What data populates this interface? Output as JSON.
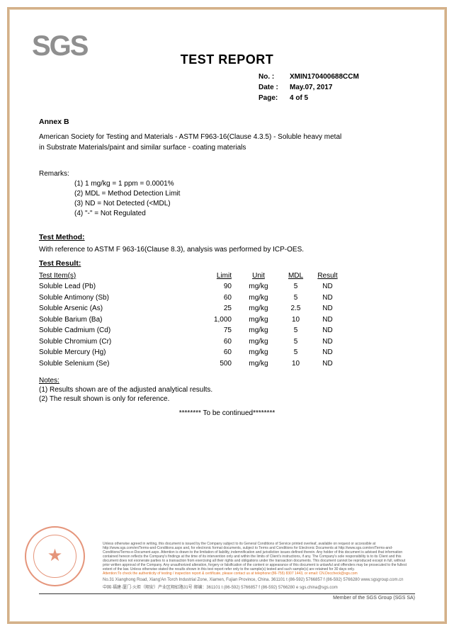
{
  "logo": {
    "text": "SGS"
  },
  "title": "TEST REPORT",
  "meta": {
    "no_label": "No.  :",
    "no_value": "XMIN170400688CCM",
    "date_label": "Date :",
    "date_value": "May.07, 2017",
    "page_label": "Page:",
    "page_value": "4 of 5"
  },
  "annex": "Annex B",
  "desc1": "American Society for Testing and Materials - ASTM F963-16(Clause 4.3.5) - Soluble heavy metal",
  "desc2": "in Substrate Materials/paint and similar surface - coating materials",
  "remarks_label": "Remarks:",
  "remarks": [
    "(1) 1 mg/kg = 1 ppm = 0.0001%",
    "(2) MDL = Method Detection Limit",
    "(3) ND = Not Detected (<MDL)",
    "(4) \"-\" = Not Regulated"
  ],
  "method_head": "Test Method:",
  "method_text": "With reference to ASTM F 963-16(Clause 8.3), analysis was performed by ICP-OES.",
  "result_head": "Test Result:",
  "table": {
    "headers": {
      "name": "Test Item(s)",
      "limit": "Limit",
      "unit": "Unit",
      "mdl": "MDL",
      "result": "Result"
    },
    "rows": [
      {
        "name": "Soluble Lead (Pb)",
        "limit": "90",
        "unit": "mg/kg",
        "mdl": "5",
        "result": "ND"
      },
      {
        "name": "Soluble Antimony (Sb)",
        "limit": "60",
        "unit": "mg/kg",
        "mdl": "5",
        "result": "ND"
      },
      {
        "name": "Soluble Arsenic (As)",
        "limit": "25",
        "unit": "mg/kg",
        "mdl": "2.5",
        "result": "ND"
      },
      {
        "name": "Soluble Barium (Ba)",
        "limit": "1,000",
        "unit": "mg/kg",
        "mdl": "10",
        "result": "ND"
      },
      {
        "name": "Soluble Cadmium (Cd)",
        "limit": "75",
        "unit": "mg/kg",
        "mdl": "5",
        "result": "ND"
      },
      {
        "name": "Soluble Chromium (Cr)",
        "limit": "60",
        "unit": "mg/kg",
        "mdl": "5",
        "result": "ND"
      },
      {
        "name": "Soluble Mercury (Hg)",
        "limit": "60",
        "unit": "mg/kg",
        "mdl": "5",
        "result": "ND"
      },
      {
        "name": "Soluble Selenium (Se)",
        "limit": "500",
        "unit": "mg/kg",
        "mdl": "10",
        "result": "ND"
      }
    ]
  },
  "notes_head": "Notes:",
  "notes1": "(1) Results shown are of the adjusted analytical results.",
  "notes2": "(2) The result shown is only for reference.",
  "tbc": "******** To be continued********",
  "fineprint": "Unless otherwise agreed in writing, this document is issued by the Company subject to its General Conditions of Service printed overleaf, available on request or accessible at http://www.sgs.com/en/Terms-and-Conditions.aspx and, for electronic format documents, subject to Terms and Conditions for Electronic Documents at http://www.sgs.com/en/Terms-and-Conditions/Terms-e-Document.aspx. Attention is drawn to the limitation of liability, indemnification and jurisdiction issues defined therein. Any holder of this document is advised that information contained hereon reflects the Company's findings at the time of its intervention only and within the limits of Client's instructions, if any. The Company's sole responsibility is to its Client and this document does not exonerate parties to a transaction from exercising all their rights and obligations under the transaction documents. This document cannot be reproduced except in full, without prior written approval of the Company. Any unauthorized alteration, forgery or falsification of the content or appearance of this document is unlawful and offenders may be prosecuted to the fullest extent of the law. Unless otherwise stated the results shown in this test report refer only to the sample(s) tested and such sample(s) are retained for 30 days only.",
  "fineorange": "Attention:To check the authenticity of testing / inspection report & certificate, please contact us at telephone:(86-755) 8307 1443, or email: CN.Doccheck@sgs.com",
  "addr1": "No.31 Xianghong Road, Xiang'An Torch Industrial Zone, Xiamen, Fujian Province, China.  361101   t (86-592) 5766857   f (86-592) 5766280   www.sgsgroup.com.cn",
  "addr2": "中国·福建·厦门·火炬（翔安）产业区翔虹路31号                                邮编：361101   t (86-592) 5766857   f (86-592) 5766280   e sgs.china@sgs.com",
  "member": "Member of the SGS Group (SGS SA)",
  "stamp_text": "Inspection & Testing Services"
}
